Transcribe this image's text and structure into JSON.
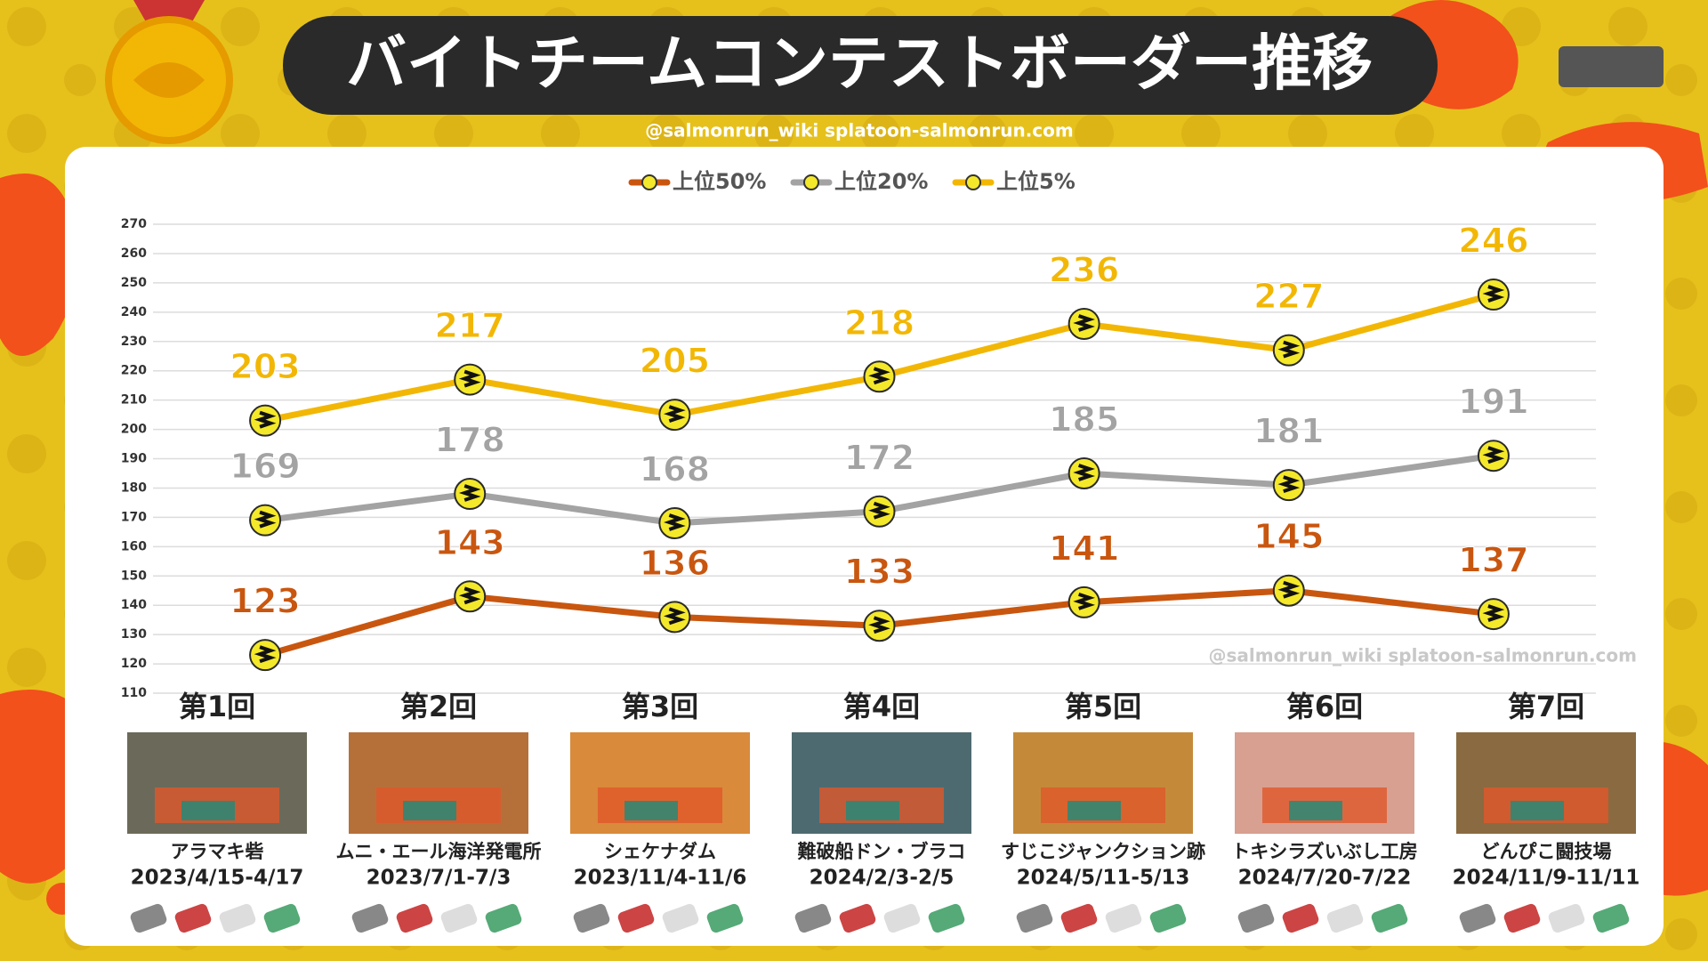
{
  "chart_data": {
    "type": "line",
    "title": "バイトチームコンテストボーダー推移",
    "subtitle": "@salmonrun_wiki splatoon-salmonrun.com",
    "watermark": "@salmonrun_wiki splatoon-salmonrun.com",
    "categories": [
      "第1回",
      "第2回",
      "第3回",
      "第4回",
      "第5回",
      "第6回",
      "第7回"
    ],
    "stages": [
      {
        "name": "アラマキ砦",
        "dates": "2023/4/15-4/17"
      },
      {
        "name": "ムニ・エール海洋発電所",
        "dates": "2023/7/1-7/3"
      },
      {
        "name": "シェケナダム",
        "dates": "2023/11/4-11/6"
      },
      {
        "name": "難破船ドン・ブラコ",
        "dates": "2024/2/3-2/5"
      },
      {
        "name": "すじこジャンクション跡",
        "dates": "2024/5/11-5/13"
      },
      {
        "name": "トキシラズいぶし工房",
        "dates": "2024/7/20-7/22"
      },
      {
        "name": "どんぴこ闘技場",
        "dates": "2024/11/9-11/11"
      }
    ],
    "series": [
      {
        "name": "上位50%",
        "color": "#c9560f",
        "values": [
          123,
          143,
          136,
          133,
          141,
          145,
          137
        ]
      },
      {
        "name": "上位20%",
        "color": "#a3a3a3",
        "values": [
          169,
          178,
          168,
          172,
          185,
          181,
          191
        ]
      },
      {
        "name": "上位5%",
        "color": "#f2b705",
        "values": [
          203,
          217,
          205,
          218,
          236,
          227,
          246
        ]
      }
    ],
    "ylim": [
      110,
      270
    ],
    "yticks": [
      110,
      120,
      130,
      140,
      150,
      160,
      170,
      180,
      190,
      200,
      210,
      220,
      230,
      240,
      250,
      260,
      270
    ],
    "grid": true,
    "legend": "top"
  }
}
